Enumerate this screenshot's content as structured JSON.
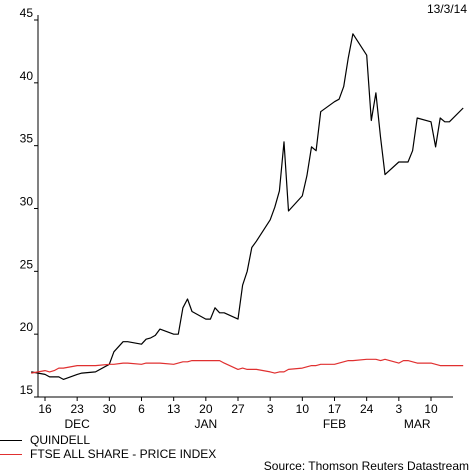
{
  "date": "13/3/14",
  "source": "Source: Thomson Reuters Datastream",
  "chart_data": {
    "type": "line",
    "title": "",
    "xlabel": "",
    "ylabel": "",
    "ylim": [
      15,
      45
    ],
    "yticks": [
      15,
      20,
      25,
      30,
      35,
      40,
      45
    ],
    "xlim": [
      "2013-12-14",
      "2014-03-13"
    ],
    "xticks": [
      {
        "date": "2013-12-16",
        "label": "16"
      },
      {
        "date": "2013-12-23",
        "label": "23"
      },
      {
        "date": "2013-12-30",
        "label": "30"
      },
      {
        "date": "2014-01-06",
        "label": "6"
      },
      {
        "date": "2014-01-13",
        "label": "13"
      },
      {
        "date": "2014-01-20",
        "label": "20"
      },
      {
        "date": "2014-01-27",
        "label": "27"
      },
      {
        "date": "2014-02-03",
        "label": "3"
      },
      {
        "date": "2014-02-10",
        "label": "10"
      },
      {
        "date": "2014-02-17",
        "label": "17"
      },
      {
        "date": "2014-02-24",
        "label": "24"
      },
      {
        "date": "2014-03-03",
        "label": "3"
      },
      {
        "date": "2014-03-10",
        "label": "10"
      }
    ],
    "months": [
      {
        "date": "2013-12-23",
        "label": "DEC"
      },
      {
        "date": "2014-01-20",
        "label": "JAN"
      },
      {
        "date": "2014-02-17",
        "label": "FEB"
      },
      {
        "date": "2014-03-07",
        "label": "MAR"
      }
    ],
    "grid": false,
    "legend_position": "bottom-left",
    "series": [
      {
        "name": "QUINDELL",
        "color": "#000000",
        "points": [
          [
            "2013-12-13",
            17.0
          ],
          [
            "2013-12-16",
            16.8
          ],
          [
            "2013-12-17",
            16.6
          ],
          [
            "2013-12-18",
            16.6
          ],
          [
            "2013-12-19",
            16.6
          ],
          [
            "2013-12-20",
            16.4
          ],
          [
            "2013-12-23",
            16.8
          ],
          [
            "2013-12-24",
            16.9
          ],
          [
            "2013-12-27",
            17.0
          ],
          [
            "2013-12-30",
            17.6
          ],
          [
            "2013-12-31",
            18.6
          ],
          [
            "2014-01-02",
            19.4
          ],
          [
            "2014-01-03",
            19.4
          ],
          [
            "2014-01-06",
            19.2
          ],
          [
            "2014-01-07",
            19.6
          ],
          [
            "2014-01-08",
            19.7
          ],
          [
            "2014-01-09",
            19.9
          ],
          [
            "2014-01-10",
            20.4
          ],
          [
            "2014-01-13",
            20.0
          ],
          [
            "2014-01-14",
            20.0
          ],
          [
            "2014-01-15",
            22.1
          ],
          [
            "2014-01-16",
            22.8
          ],
          [
            "2014-01-17",
            21.8
          ],
          [
            "2014-01-20",
            21.2
          ],
          [
            "2014-01-21",
            21.2
          ],
          [
            "2014-01-22",
            22.1
          ],
          [
            "2014-01-23",
            21.7
          ],
          [
            "2014-01-24",
            21.7
          ],
          [
            "2014-01-27",
            21.2
          ],
          [
            "2014-01-28",
            23.9
          ],
          [
            "2014-01-29",
            25.0
          ],
          [
            "2014-01-30",
            26.9
          ],
          [
            "2014-01-31",
            27.4
          ],
          [
            "2014-02-03",
            29.1
          ],
          [
            "2014-02-04",
            30.1
          ],
          [
            "2014-02-05",
            31.4
          ],
          [
            "2014-02-06",
            35.3
          ],
          [
            "2014-02-07",
            29.8
          ],
          [
            "2014-02-10",
            31.0
          ],
          [
            "2014-02-11",
            32.6
          ],
          [
            "2014-02-12",
            34.9
          ],
          [
            "2014-02-13",
            34.6
          ],
          [
            "2014-02-14",
            37.7
          ],
          [
            "2014-02-17",
            38.5
          ],
          [
            "2014-02-18",
            38.7
          ],
          [
            "2014-02-19",
            39.7
          ],
          [
            "2014-02-20",
            42.0
          ],
          [
            "2014-02-21",
            43.9
          ],
          [
            "2014-02-24",
            42.2
          ],
          [
            "2014-02-25",
            37.0
          ],
          [
            "2014-02-26",
            39.2
          ],
          [
            "2014-02-27",
            35.7
          ],
          [
            "2014-02-28",
            32.7
          ],
          [
            "2014-03-03",
            33.7
          ],
          [
            "2014-03-04",
            33.7
          ],
          [
            "2014-03-05",
            33.7
          ],
          [
            "2014-03-06",
            34.6
          ],
          [
            "2014-03-07",
            37.2
          ],
          [
            "2014-03-10",
            36.9
          ],
          [
            "2014-03-11",
            34.9
          ],
          [
            "2014-03-12",
            37.2
          ],
          [
            "2014-03-13",
            36.9
          ],
          [
            "2014-03-14",
            36.9
          ],
          [
            "2014-03-17",
            38.0
          ]
        ]
      },
      {
        "name": "FTSE ALL SHARE - PRICE INDEX",
        "color": "#e03030",
        "points": [
          [
            "2013-12-13",
            16.9
          ],
          [
            "2013-12-16",
            17.1
          ],
          [
            "2013-12-17",
            17.0
          ],
          [
            "2013-12-18",
            17.1
          ],
          [
            "2013-12-19",
            17.3
          ],
          [
            "2013-12-20",
            17.3
          ],
          [
            "2013-12-23",
            17.5
          ],
          [
            "2013-12-24",
            17.5
          ],
          [
            "2013-12-27",
            17.5
          ],
          [
            "2013-12-30",
            17.6
          ],
          [
            "2013-12-31",
            17.6
          ],
          [
            "2014-01-02",
            17.7
          ],
          [
            "2014-01-03",
            17.7
          ],
          [
            "2014-01-06",
            17.6
          ],
          [
            "2014-01-07",
            17.7
          ],
          [
            "2014-01-08",
            17.7
          ],
          [
            "2014-01-09",
            17.7
          ],
          [
            "2014-01-10",
            17.7
          ],
          [
            "2014-01-13",
            17.6
          ],
          [
            "2014-01-14",
            17.7
          ],
          [
            "2014-01-15",
            17.8
          ],
          [
            "2014-01-16",
            17.8
          ],
          [
            "2014-01-17",
            17.9
          ],
          [
            "2014-01-20",
            17.9
          ],
          [
            "2014-01-21",
            17.9
          ],
          [
            "2014-01-22",
            17.9
          ],
          [
            "2014-01-23",
            17.9
          ],
          [
            "2014-01-24",
            17.7
          ],
          [
            "2014-01-27",
            17.2
          ],
          [
            "2014-01-28",
            17.3
          ],
          [
            "2014-01-29",
            17.2
          ],
          [
            "2014-01-30",
            17.2
          ],
          [
            "2014-01-31",
            17.2
          ],
          [
            "2014-02-03",
            17.0
          ],
          [
            "2014-02-04",
            16.9
          ],
          [
            "2014-02-05",
            17.0
          ],
          [
            "2014-02-06",
            17.0
          ],
          [
            "2014-02-07",
            17.2
          ],
          [
            "2014-02-10",
            17.3
          ],
          [
            "2014-02-11",
            17.4
          ],
          [
            "2014-02-12",
            17.5
          ],
          [
            "2014-02-13",
            17.5
          ],
          [
            "2014-02-14",
            17.6
          ],
          [
            "2014-02-17",
            17.6
          ],
          [
            "2014-02-18",
            17.7
          ],
          [
            "2014-02-19",
            17.8
          ],
          [
            "2014-02-20",
            17.9
          ],
          [
            "2014-02-21",
            17.9
          ],
          [
            "2014-02-24",
            18.0
          ],
          [
            "2014-02-25",
            18.0
          ],
          [
            "2014-02-26",
            18.0
          ],
          [
            "2014-02-27",
            17.9
          ],
          [
            "2014-02-28",
            18.0
          ],
          [
            "2014-03-03",
            17.7
          ],
          [
            "2014-03-04",
            17.9
          ],
          [
            "2014-03-05",
            17.9
          ],
          [
            "2014-03-06",
            17.8
          ],
          [
            "2014-03-07",
            17.7
          ],
          [
            "2014-03-10",
            17.7
          ],
          [
            "2014-03-11",
            17.6
          ],
          [
            "2014-03-12",
            17.5
          ],
          [
            "2014-03-13",
            17.5
          ],
          [
            "2014-03-14",
            17.5
          ],
          [
            "2014-03-17",
            17.5
          ]
        ]
      }
    ]
  }
}
